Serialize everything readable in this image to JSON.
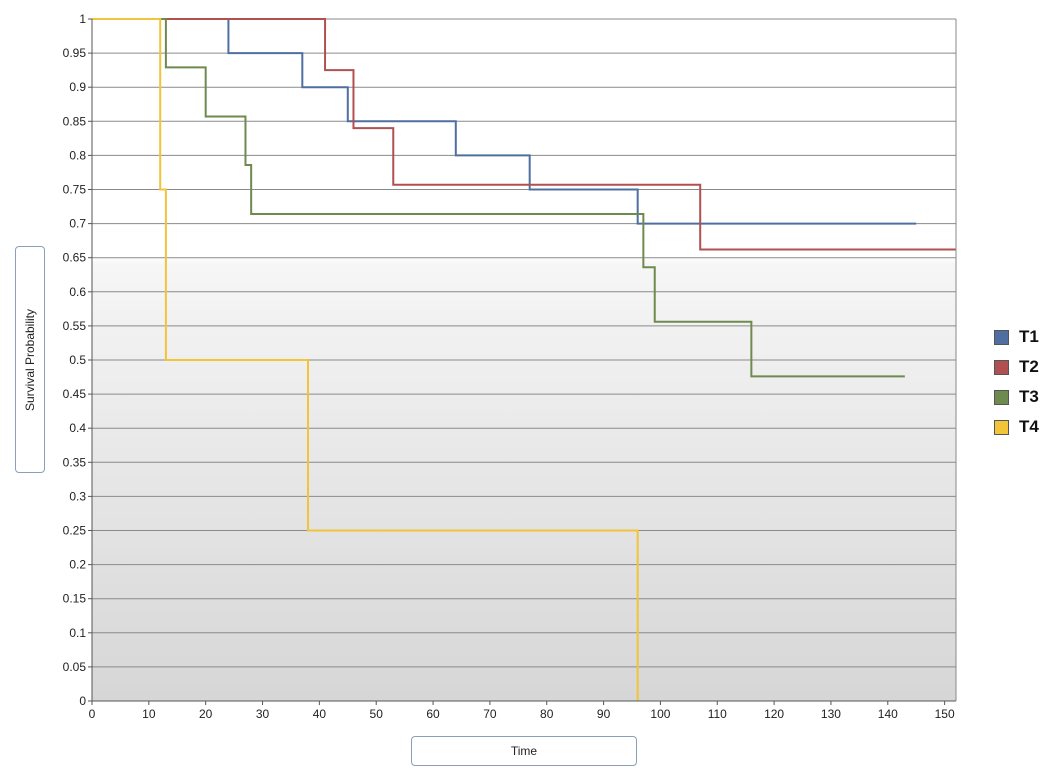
{
  "chart_data": {
    "type": "line",
    "xlabel": "Time",
    "ylabel": "Survival Probability",
    "xlim": [
      0,
      152
    ],
    "ylim": [
      0,
      1
    ],
    "x_ticks": [
      "0",
      "10",
      "20",
      "30",
      "40",
      "50",
      "60",
      "70",
      "80",
      "90",
      "100",
      "110",
      "120",
      "130",
      "140",
      "150"
    ],
    "y_ticks": [
      "0",
      "0.05",
      "0.1",
      "0.15",
      "0.2",
      "0.25",
      "0.3",
      "0.35",
      "0.4",
      "0.45",
      "0.5",
      "0.55",
      "0.6",
      "0.65",
      "0.7",
      "0.75",
      "0.8",
      "0.85",
      "0.9",
      "0.95",
      "1"
    ],
    "grid": "horizontal",
    "legend_position": "right",
    "series": [
      {
        "name": "T1",
        "color": "#4f6fa0",
        "x": [
          0,
          24,
          37,
          45,
          64,
          77,
          96,
          145
        ],
        "y": [
          1,
          0.95,
          0.9,
          0.85,
          0.8,
          0.75,
          0.7,
          0.7
        ]
      },
      {
        "name": "T2",
        "color": "#b05050",
        "x": [
          0,
          41,
          46,
          53,
          107,
          152
        ],
        "y": [
          1,
          0.925,
          0.84,
          0.757,
          0.662,
          0.662
        ]
      },
      {
        "name": "T3",
        "color": "#6e8a4e",
        "x": [
          0,
          13,
          20,
          27,
          28,
          97,
          99,
          116,
          143
        ],
        "y": [
          1,
          0.929,
          0.857,
          0.786,
          0.714,
          0.636,
          0.556,
          0.476,
          0.476
        ]
      },
      {
        "name": "T4",
        "color": "#f2c43a",
        "x": [
          0,
          12,
          13,
          38,
          96
        ],
        "y": [
          1,
          0.75,
          0.5,
          0.25,
          0
        ]
      }
    ]
  }
}
